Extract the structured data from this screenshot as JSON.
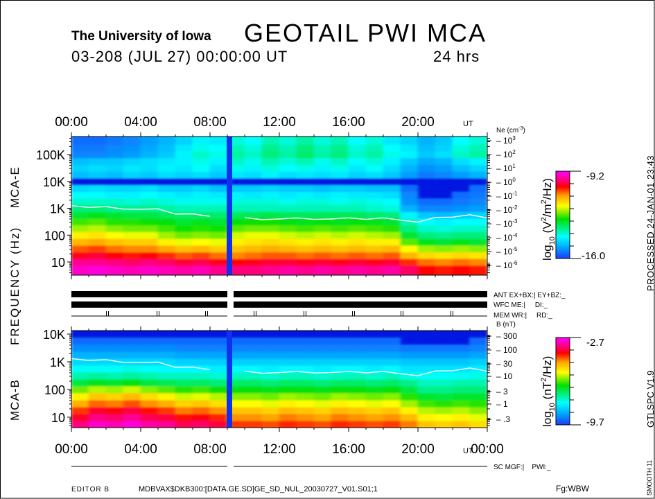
{
  "header": {
    "institution": "The University of Iowa",
    "title": "GEOTAIL PWI MCA",
    "date_line": "03-208 (JUL 27) 00:00:00 UT",
    "duration": "24 hrs"
  },
  "time_axis": {
    "top_labels": [
      "00:00",
      "04:00",
      "08:00",
      "12:00",
      "16:00",
      "20:00"
    ],
    "bottom_labels": [
      "00:00",
      "04:00",
      "08:00",
      "12:00",
      "16:00",
      "20:00",
      "00:00"
    ],
    "unit": "UT"
  },
  "left_labels": {
    "mca_e": "MCA-E",
    "frequency": "FREQUENCY (Hz)",
    "mca_b": "MCA-B"
  },
  "right_text": {
    "processed": "PROCESSED 24-JAN-01  23:43",
    "version": "GTLSPC   V1.9",
    "smooth": "SMOOTH 11"
  },
  "status": {
    "ant": "ANT EX+BX:| EY+BZ:_",
    "wfc": "WFC ME:|     DI:_",
    "mem": "MEM WR:|     RD:_",
    "sc": "SC MGF:|    PWI:_"
  },
  "footer": {
    "editor": "EDITOR B",
    "file": "MDBVAX$DKB300:[DATA.GE.SD]GE_SD_NUL_20030727_V01.S01;1",
    "fg": "Fg:WBW"
  },
  "colors": {
    "frame": "#000000",
    "trace": "#ffffff",
    "data_gap": "#1030f0"
  },
  "chart_data": [
    {
      "type": "heatmap",
      "panel": "MCA-E",
      "x_unit": "hours UT",
      "xlim": [
        0,
        24
      ],
      "data_gap_hours": [
        8.96,
        9.28
      ],
      "y_tick_labels": [
        "100K",
        "10K",
        "1K",
        "100",
        "10"
      ],
      "y_tick_values": [
        100000,
        10000,
        1000,
        100,
        10
      ],
      "y_scale": "log",
      "right_axis": {
        "title_base": "Ne (cm",
        "title_sup": "-3",
        "title_end": ")",
        "base": "10",
        "exponents": [
          "3",
          "2",
          "1",
          "0",
          "-1",
          "-2",
          "-3",
          "-4",
          "-5",
          "-6"
        ]
      },
      "colorbar": {
        "label_parts": [
          "log",
          "10",
          " (V",
          "2",
          "/m",
          "2",
          "/Hz)"
        ],
        "max": -9.2,
        "min": -16.0,
        "max_label": "-9.2",
        "min_label": "-16.0"
      },
      "frequencies_hz": [
        5.62,
        10,
        17.8,
        31.1,
        56.2,
        100,
        178,
        311,
        562,
        1000,
        1780,
        3110,
        5620,
        10000,
        17800,
        31100,
        56200,
        100000,
        178000,
        311000
      ],
      "hours": [
        0,
        1,
        2,
        3,
        4,
        5,
        6,
        7,
        8,
        9,
        10,
        11,
        12,
        13,
        14,
        15,
        16,
        17,
        18,
        19,
        20,
        21,
        22,
        23
      ],
      "values": [
        [
          -9.5,
          -9.4,
          -9.5,
          -9.6,
          -9.5,
          -9.6,
          -9.7,
          -9.6,
          -9.8,
          -9.9,
          -9.9,
          -9.8,
          -9.7,
          -9.8,
          -9.7,
          -9.8,
          -9.7,
          -9.8,
          -9.7,
          -10.0,
          -10.4,
          -10.5,
          -10.4,
          -10.5
        ],
        [
          -9.8,
          -9.8,
          -9.9,
          -10.0,
          -9.9,
          -10.0,
          -10.2,
          -10.1,
          -10.3,
          -10.4,
          -10.3,
          -10.2,
          -10.2,
          -10.3,
          -10.2,
          -10.3,
          -10.2,
          -10.3,
          -10.2,
          -10.6,
          -10.9,
          -11.0,
          -10.9,
          -11.0
        ],
        [
          -10.3,
          -10.2,
          -10.4,
          -10.5,
          -10.4,
          -10.6,
          -10.8,
          -10.7,
          -10.9,
          -11.0,
          -10.9,
          -10.8,
          -10.8,
          -10.9,
          -10.8,
          -10.9,
          -10.8,
          -10.9,
          -10.8,
          -11.3,
          -11.6,
          -11.7,
          -11.6,
          -11.7
        ],
        [
          -10.8,
          -10.7,
          -10.9,
          -11.0,
          -11.0,
          -11.2,
          -11.4,
          -11.3,
          -11.5,
          -11.4,
          -11.3,
          -11.2,
          -11.3,
          -11.4,
          -11.3,
          -11.4,
          -11.3,
          -11.4,
          -11.3,
          -11.9,
          -12.3,
          -12.4,
          -12.3,
          -12.4
        ],
        [
          -11.3,
          -11.2,
          -11.4,
          -11.5,
          -11.5,
          -11.8,
          -12.0,
          -11.9,
          -12.0,
          -11.8,
          -11.7,
          -11.6,
          -11.7,
          -11.8,
          -11.7,
          -11.8,
          -11.7,
          -11.8,
          -11.8,
          -12.6,
          -13.1,
          -13.2,
          -13.1,
          -13.2
        ],
        [
          -11.8,
          -11.7,
          -11.9,
          -12.0,
          -12.0,
          -12.3,
          -12.5,
          -12.4,
          -12.5,
          -12.1,
          -12.0,
          -12.0,
          -12.1,
          -12.2,
          -12.1,
          -12.2,
          -12.1,
          -12.2,
          -12.3,
          -13.2,
          -13.6,
          -13.7,
          -13.6,
          -13.6
        ],
        [
          -12.3,
          -12.2,
          -12.4,
          -12.5,
          -12.5,
          -12.7,
          -12.9,
          -12.8,
          -12.9,
          -12.6,
          -12.5,
          -12.5,
          -12.6,
          -12.7,
          -12.6,
          -12.7,
          -12.6,
          -12.7,
          -12.8,
          -13.6,
          -14.0,
          -14.1,
          -14.0,
          -14.0
        ],
        [
          -12.7,
          -12.6,
          -12.8,
          -12.8,
          -12.9,
          -13.0,
          -13.2,
          -13.1,
          -13.2,
          -13.0,
          -12.9,
          -12.9,
          -13.0,
          -13.1,
          -13.0,
          -13.1,
          -13.0,
          -13.1,
          -13.2,
          -13.9,
          -14.3,
          -14.4,
          -14.3,
          -14.3
        ],
        [
          -13.2,
          -13.1,
          -13.2,
          -13.3,
          -13.3,
          -13.4,
          -13.5,
          -13.5,
          -13.5,
          -13.4,
          -13.4,
          -13.3,
          -13.4,
          -13.4,
          -13.4,
          -13.4,
          -13.4,
          -13.5,
          -13.6,
          -14.4,
          -14.8,
          -14.9,
          -14.8,
          -14.7
        ],
        [
          -13.6,
          -13.6,
          -13.7,
          -13.7,
          -13.7,
          -13.8,
          -13.9,
          -13.9,
          -13.9,
          -13.9,
          -13.9,
          -13.9,
          -13.9,
          -13.9,
          -13.9,
          -13.9,
          -13.9,
          -14.0,
          -14.1,
          -15.0,
          -15.4,
          -15.4,
          -15.3,
          -15.2
        ],
        [
          -14.0,
          -14.0,
          -14.0,
          -14.1,
          -14.0,
          -14.1,
          -14.2,
          -14.2,
          -14.2,
          -14.1,
          -14.1,
          -14.1,
          -14.2,
          -14.1,
          -14.1,
          -14.2,
          -14.1,
          -14.2,
          -14.3,
          -15.3,
          -15.6,
          -15.6,
          -15.5,
          -15.4
        ],
        [
          -14.3,
          -14.3,
          -14.4,
          -14.4,
          -14.3,
          -14.4,
          -14.5,
          -14.4,
          -14.5,
          -14.4,
          -14.5,
          -14.4,
          -14.5,
          -14.4,
          -14.5,
          -14.4,
          -14.5,
          -14.5,
          -14.6,
          -15.4,
          -15.7,
          -15.7,
          -15.6,
          -15.5
        ],
        [
          -14.7,
          -14.6,
          -14.7,
          -14.7,
          -14.6,
          -14.8,
          -14.8,
          -14.7,
          -14.9,
          -14.8,
          -14.8,
          -14.7,
          -14.8,
          -14.8,
          -14.9,
          -14.8,
          -14.8,
          -14.9,
          -14.9,
          -15.6,
          -15.8,
          -15.8,
          -15.7,
          -15.6
        ],
        [
          -15.8,
          -15.8,
          -15.8,
          -15.8,
          -15.8,
          -15.8,
          -15.8,
          -15.8,
          -15.8,
          -15.8,
          -15.8,
          -15.8,
          -15.8,
          -15.8,
          -15.8,
          -15.8,
          -15.8,
          -15.8,
          -15.8,
          -15.8,
          -15.8,
          -15.8,
          -15.8,
          -15.8
        ],
        [
          -14.9,
          -14.8,
          -14.9,
          -14.7,
          -14.8,
          -14.6,
          -14.7,
          -14.6,
          -14.8,
          -14.5,
          -14.6,
          -14.4,
          -14.6,
          -14.5,
          -14.6,
          -14.5,
          -14.7,
          -14.6,
          -14.8,
          -15.2,
          -15.5,
          -15.4,
          -15.2,
          -15.0
        ],
        [
          -14.7,
          -14.6,
          -14.7,
          -14.5,
          -14.6,
          -14.4,
          -14.5,
          -14.3,
          -14.6,
          -14.2,
          -14.4,
          -14.1,
          -14.3,
          -14.2,
          -14.4,
          -14.2,
          -14.5,
          -14.3,
          -14.6,
          -15.0,
          -15.3,
          -15.2,
          -14.9,
          -14.7
        ],
        [
          -14.9,
          -14.8,
          -14.8,
          -14.7,
          -14.6,
          -14.5,
          -14.4,
          -14.2,
          -14.4,
          -14.0,
          -14.2,
          -13.9,
          -14.1,
          -13.9,
          -14.2,
          -14.0,
          -14.3,
          -14.1,
          -14.4,
          -14.8,
          -15.1,
          -15.0,
          -14.6,
          -14.4
        ],
        [
          -15.4,
          -15.4,
          -15.3,
          -15.2,
          -15.0,
          -14.8,
          -14.4,
          -14.0,
          -14.2,
          -13.8,
          -14.0,
          -13.6,
          -13.8,
          -13.5,
          -13.8,
          -13.6,
          -14.0,
          -13.8,
          -14.2,
          -14.4,
          -14.8,
          -14.6,
          -14.0,
          -13.8
        ],
        [
          -15.5,
          -15.5,
          -15.4,
          -15.3,
          -15.1,
          -14.9,
          -14.5,
          -14.2,
          -14.3,
          -13.9,
          -14.1,
          -13.7,
          -13.9,
          -13.6,
          -13.9,
          -13.7,
          -14.1,
          -13.9,
          -14.3,
          -14.5,
          -14.9,
          -14.7,
          -14.1,
          -13.9
        ],
        [
          -15.6,
          -15.6,
          -15.5,
          -15.4,
          -15.2,
          -15.0,
          -14.7,
          -14.4,
          -14.5,
          -14.1,
          -14.3,
          -13.9,
          -14.1,
          -13.8,
          -14.1,
          -13.9,
          -14.3,
          -14.1,
          -14.5,
          -14.7,
          -15.0,
          -14.8,
          -14.3,
          -14.1
        ]
      ],
      "trace_hz": [
        1250,
        1150,
        1050,
        980,
        930,
        880,
        660,
        600,
        480,
        null,
        420,
        380,
        420,
        400,
        410,
        400,
        410,
        420,
        420,
        350,
        330,
        420,
        480,
        600,
        400
      ]
    },
    {
      "type": "heatmap",
      "panel": "MCA-B",
      "x_unit": "hours UT",
      "xlim": [
        0,
        24
      ],
      "data_gap_hours": [
        8.96,
        9.28
      ],
      "y_tick_labels": [
        "10K",
        "1K",
        "100",
        "10"
      ],
      "y_tick_values": [
        10000,
        1000,
        100,
        10
      ],
      "y_scale": "log",
      "right_axis": {
        "title": "B (nT)",
        "labels": [
          "300",
          "100",
          "30",
          "10",
          "3",
          "1",
          ".3"
        ]
      },
      "colorbar": {
        "label_parts": [
          "log",
          "10",
          " (nT",
          "2",
          "/Hz)"
        ],
        "max": -2.7,
        "min": -9.7,
        "max_label": "-2.7",
        "min_label": "-9.7"
      },
      "frequencies_hz": [
        5.62,
        10,
        17.8,
        31.1,
        56.2,
        100,
        178,
        311,
        562,
        1000,
        1780,
        3110,
        5620,
        10000
      ],
      "hours": [
        0,
        1,
        2,
        3,
        4,
        5,
        6,
        7,
        8,
        9,
        10,
        11,
        12,
        13,
        14,
        15,
        16,
        17,
        18,
        19,
        20,
        21,
        22,
        23
      ],
      "values": [
        [
          -3.4,
          -3.0,
          -3.1,
          -2.9,
          -3.2,
          -3.3,
          -3.6,
          -3.5,
          -3.7,
          -4.2,
          -4.2,
          -4.3,
          -4.1,
          -4.2,
          -4.3,
          -4.1,
          -4.2,
          -4.3,
          -4.2,
          -4.5,
          -5.0,
          -5.1,
          -5.0,
          -5.2
        ],
        [
          -3.8,
          -3.4,
          -3.5,
          -3.3,
          -3.6,
          -3.7,
          -4.0,
          -3.9,
          -4.1,
          -4.6,
          -4.6,
          -4.7,
          -4.5,
          -4.6,
          -4.7,
          -4.5,
          -4.6,
          -4.7,
          -4.6,
          -4.9,
          -5.4,
          -5.5,
          -5.4,
          -5.6
        ],
        [
          -4.2,
          -3.8,
          -3.9,
          -3.7,
          -4.0,
          -4.2,
          -4.5,
          -4.4,
          -4.6,
          -5.0,
          -5.0,
          -5.1,
          -4.9,
          -5.0,
          -5.1,
          -4.9,
          -5.0,
          -5.1,
          -5.0,
          -5.4,
          -5.8,
          -5.9,
          -5.8,
          -6.0
        ],
        [
          -4.8,
          -4.4,
          -4.5,
          -4.3,
          -4.6,
          -4.8,
          -5.1,
          -5.0,
          -5.2,
          -5.5,
          -5.5,
          -5.6,
          -5.4,
          -5.5,
          -5.6,
          -5.4,
          -5.5,
          -5.6,
          -5.5,
          -5.9,
          -6.3,
          -6.4,
          -6.3,
          -6.4
        ],
        [
          -5.4,
          -5.0,
          -5.1,
          -4.9,
          -5.2,
          -5.4,
          -5.7,
          -5.6,
          -5.8,
          -6.0,
          -6.0,
          -6.1,
          -5.9,
          -6.0,
          -6.1,
          -5.9,
          -6.0,
          -6.1,
          -6.0,
          -6.4,
          -6.8,
          -6.9,
          -6.8,
          -6.8
        ],
        [
          -6.1,
          -5.8,
          -5.9,
          -5.7,
          -6.0,
          -6.2,
          -6.4,
          -6.3,
          -6.5,
          -6.6,
          -6.6,
          -6.7,
          -6.6,
          -6.6,
          -6.7,
          -6.6,
          -6.6,
          -6.7,
          -6.6,
          -6.9,
          -7.3,
          -7.3,
          -7.2,
          -7.2
        ],
        [
          -6.9,
          -6.7,
          -6.8,
          -6.6,
          -6.9,
          -7.0,
          -7.1,
          -7.1,
          -7.2,
          -7.1,
          -7.1,
          -7.2,
          -7.1,
          -7.1,
          -7.2,
          -7.1,
          -7.1,
          -7.2,
          -7.1,
          -7.3,
          -7.6,
          -7.6,
          -7.5,
          -7.5
        ],
        [
          -7.5,
          -7.4,
          -7.5,
          -7.4,
          -7.5,
          -7.6,
          -7.6,
          -7.6,
          -7.7,
          -7.6,
          -7.6,
          -7.7,
          -7.6,
          -7.6,
          -7.7,
          -7.6,
          -7.6,
          -7.7,
          -7.6,
          -7.8,
          -7.9,
          -7.9,
          -7.9,
          -7.8
        ],
        [
          -7.9,
          -7.9,
          -7.9,
          -7.8,
          -7.9,
          -8.0,
          -8.0,
          -8.0,
          -8.1,
          -8.0,
          -8.0,
          -8.1,
          -8.0,
          -8.0,
          -8.1,
          -8.0,
          -8.0,
          -8.1,
          -8.0,
          -8.2,
          -8.2,
          -8.2,
          -8.2,
          -8.1
        ],
        [
          -8.3,
          -8.3,
          -8.3,
          -8.3,
          -8.3,
          -8.3,
          -8.4,
          -8.4,
          -8.4,
          -8.4,
          -8.4,
          -8.4,
          -8.4,
          -8.4,
          -8.4,
          -8.4,
          -8.4,
          -8.4,
          -8.4,
          -8.5,
          -8.5,
          -8.5,
          -8.5,
          -8.4
        ],
        [
          -8.7,
          -8.7,
          -8.7,
          -8.7,
          -8.7,
          -8.7,
          -8.8,
          -8.8,
          -8.8,
          -8.8,
          -8.8,
          -8.8,
          -8.8,
          -8.8,
          -8.8,
          -8.8,
          -8.8,
          -8.8,
          -8.8,
          -8.9,
          -8.9,
          -8.9,
          -8.9,
          -8.8
        ],
        [
          -9.0,
          -9.0,
          -9.0,
          -9.0,
          -9.0,
          -9.0,
          -9.1,
          -9.1,
          -9.1,
          -9.1,
          -9.1,
          -9.1,
          -9.1,
          -9.1,
          -9.1,
          -9.1,
          -9.1,
          -9.1,
          -9.1,
          -9.2,
          -9.2,
          -9.2,
          -9.2,
          -9.1
        ],
        [
          -9.3,
          -9.3,
          -9.3,
          -9.3,
          -9.3,
          -9.3,
          -9.3,
          -9.3,
          -9.3,
          -9.3,
          -9.3,
          -9.3,
          -9.3,
          -9.3,
          -9.3,
          -9.3,
          -9.3,
          -9.3,
          -9.3,
          -9.4,
          -9.4,
          -9.4,
          -9.4,
          -9.3
        ],
        [
          -9.5,
          -9.5,
          -9.5,
          -9.5,
          -9.5,
          -9.5,
          -9.5,
          -9.5,
          -9.5,
          -9.5,
          -9.5,
          -9.5,
          -9.5,
          -9.5,
          -9.5,
          -9.5,
          -9.5,
          -9.5,
          -9.5,
          -9.6,
          -9.6,
          -9.6,
          -9.6,
          -9.5
        ]
      ],
      "trace_hz": [
        1300,
        1200,
        1100,
        1000,
        950,
        900,
        680,
        620,
        500,
        null,
        430,
        390,
        430,
        410,
        420,
        410,
        420,
        430,
        430,
        360,
        340,
        430,
        490,
        620,
        420
      ]
    }
  ]
}
